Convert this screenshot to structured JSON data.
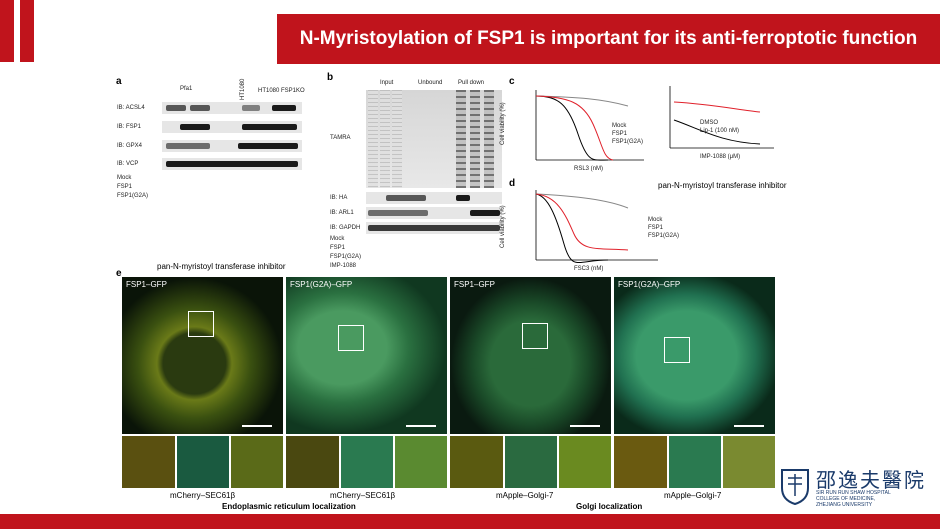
{
  "title": "N-Myristoylation of FSP1 is important for its anti-ferroptotic function",
  "panels": {
    "a": "a",
    "b": "b",
    "c": "c",
    "d": "d",
    "e": "e"
  },
  "blot_a": {
    "groups": [
      "Pfa1",
      "HT1080",
      "HT1080 FSP1KO"
    ],
    "rows": [
      "IB: ACSL4",
      "IB: FSP1",
      "IB: GPX4",
      "IB: VCP"
    ],
    "conditions": [
      "Mock",
      "FSP1",
      "FSP1(G2A)"
    ]
  },
  "blot_b": {
    "groups": [
      "Input",
      "Unbound",
      "Pull down"
    ],
    "rows": [
      "TAMRA",
      "IB: HA",
      "IB: ARL1",
      "IB: GAPDH"
    ],
    "conditions": [
      "Mock",
      "FSP1",
      "FSP1(G2A)",
      "IMP-1088"
    ]
  },
  "chart_c1": {
    "ylabel": "Cell viability (%)",
    "xlabel": "RSL3 (nM)",
    "legend": [
      "Mock",
      "FSP1",
      "FSP1(G2A)"
    ],
    "ticks_x": [
      "1",
      "10",
      "100",
      "1,000"
    ],
    "ticks_y": [
      "0",
      "20",
      "40",
      "60",
      "80",
      "100",
      "120"
    ]
  },
  "chart_c2": {
    "xlabel": "IMP-1088 (μM)",
    "legend": [
      "DMSO",
      "Lip-1 (100 nM)"
    ],
    "ticks_x": [
      "0.01",
      "0.1",
      "1"
    ],
    "ticks_y": [
      "0",
      "30",
      "60",
      "90",
      "120"
    ]
  },
  "chart_d": {
    "ylabel": "Cell viability (%)",
    "xlabel": "FSC3 (nM)",
    "legend": [
      "Mock",
      "FSP1",
      "FSP1(G2A)"
    ],
    "ticks_x": [
      "1",
      "10",
      "100",
      "1,000",
      "10,000"
    ],
    "ticks_y": [
      "0",
      "20",
      "40",
      "60",
      "80",
      "100",
      "120"
    ]
  },
  "annotation_right": "pan-N-myristoyl transferase inhibitor",
  "annotation_left": "pan-N-myristoyl transferase inhibitor",
  "micro": [
    {
      "label": "FSP1–GFP",
      "caption": "mCherry–SEC61β"
    },
    {
      "label": "FSP1(G2A)–GFP",
      "caption": "mCherry–SEC61β"
    },
    {
      "label": "FSP1–GFP",
      "caption": "mApple–Golgi-7"
    },
    {
      "label": "FSP1(G2A)–GFP",
      "caption": "mApple–Golgi-7"
    }
  ],
  "localization": {
    "er": "Endoplasmic reticulum localization",
    "golgi": "Golgi localization"
  },
  "logo": {
    "cn": "邵逸夫醫院",
    "en1": "SIR RUN RUN SHAW HOSPITAL",
    "en2": "COLLEGE OF MEDICINE,",
    "en3": "ZHEJIANG UNIVERSITY"
  },
  "colors": {
    "accent": "#c0141c",
    "mock": "#000000",
    "fsp1": "#888888",
    "g2a": "#e0202a",
    "lip1": "#e0202a"
  }
}
